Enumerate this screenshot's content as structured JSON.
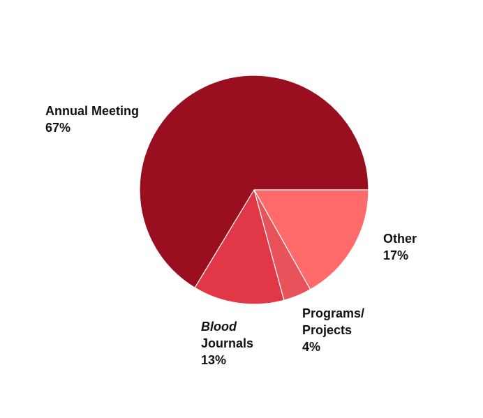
{
  "chart_data": {
    "type": "pie",
    "title": "",
    "start": "3 o'clock, clockwise",
    "slices": [
      {
        "label_lines": [
          "Other"
        ],
        "value": 17,
        "value_label": "17%",
        "color": "#ff6b6b"
      },
      {
        "label_lines": [
          "Programs/",
          "Projects"
        ],
        "value": 4,
        "value_label": "4%",
        "color": "#e8525a"
      },
      {
        "label_lines": [
          "Blood",
          "Journals"
        ],
        "italic_first_line": true,
        "value": 13,
        "value_label": "13%",
        "color": "#e23747"
      },
      {
        "label_lines": [
          "Annual Meeting"
        ],
        "value": 67,
        "value_label": "67%",
        "color": "#990f20"
      }
    ],
    "legend": "none; labels placed beside slices",
    "slice_border_color": "#ffffff"
  }
}
